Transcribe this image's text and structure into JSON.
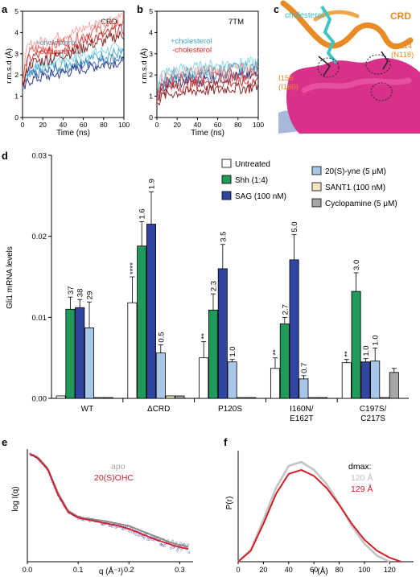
{
  "panels": {
    "a": {
      "letter": "a",
      "title": "CRD",
      "ylabel": "r.m.s.d (Å)",
      "xlabel": "Time (ns)",
      "legend": [
        "+cholesterol",
        "-cholesterol"
      ],
      "colors": {
        "plus": "#3aa7c8",
        "minus": "#d9302c"
      },
      "xticks": [
        "0",
        "20",
        "40",
        "60",
        "80",
        "100"
      ],
      "yticks": [
        "0",
        "1",
        "2",
        "3",
        "4",
        "5"
      ]
    },
    "b": {
      "letter": "b",
      "title": "7TM",
      "ylabel": "r.m.s.d (Å)",
      "xlabel": "Time (ns)",
      "legend": [
        "+cholesterol",
        "-cholesterol"
      ],
      "xticks": [
        "0",
        "20",
        "40",
        "60",
        "80",
        "100"
      ],
      "yticks": [
        "0",
        "1",
        "2",
        "3",
        "4",
        "5"
      ]
    },
    "c": {
      "letter": "c",
      "labels": {
        "cholesterol": "cholesterol",
        "crd": "CRD",
        "ld": "LD",
        "n114": "N114",
        "n118": "(N118)",
        "i156": "I156",
        "i160": "(I160)"
      }
    },
    "d": {
      "letter": "d",
      "ylabel": "Gli1 mRNA levels",
      "legend": [
        {
          "label": "Untreated",
          "color": "#ffffff"
        },
        {
          "label": "Shh (1:4)",
          "color": "#1f9a5a"
        },
        {
          "label": "SAG (100 nM)",
          "color": "#2f45a0"
        },
        {
          "label": "20(S)-yne (5 μM)",
          "color": "#a7c6e8"
        },
        {
          "label": "SANT1 (100 nM)",
          "color": "#efe6c3"
        },
        {
          "label": "Cyclopamine (5 μM)",
          "color": "#a6a6a6"
        }
      ]
    },
    "e": {
      "letter": "e",
      "ylabel": "log I(q)",
      "xlabel": "q (Å⁻¹)",
      "legend": [
        {
          "label": "apo",
          "color": "#a8a8a8"
        },
        {
          "label": "20(S)OHC",
          "color": "#d11f26"
        }
      ],
      "xticks": [
        "0.0",
        "0.1",
        "0.2",
        "0.3"
      ]
    },
    "f": {
      "letter": "f",
      "ylabel": "P(r)",
      "xlabel": "r (Å)",
      "legend_title": "dmax:",
      "legend": [
        {
          "label": "120 Å",
          "color": "#bdbdbd"
        },
        {
          "label": "129 Å",
          "color": "#d11f26"
        }
      ],
      "xticks": [
        "0",
        "20",
        "40",
        "60",
        "80",
        "100",
        "120"
      ]
    }
  },
  "chart_data": [
    {
      "type": "line",
      "panel": "a",
      "title": "CRD",
      "xlabel": "Time (ns)",
      "ylabel": "r.m.s.d (Å)",
      "xlim": [
        0,
        100
      ],
      "ylim": [
        0,
        5
      ],
      "series": [
        {
          "name": "+cholesterol",
          "x": [
            0,
            5,
            10,
            20,
            30,
            40,
            50,
            60,
            70,
            80,
            90,
            100
          ],
          "y": [
            1.3,
            2.0,
            2.1,
            2.2,
            2.3,
            2.4,
            2.5,
            2.6,
            2.7,
            2.8,
            2.9,
            2.9
          ]
        },
        {
          "name": "-cholesterol",
          "x": [
            0,
            5,
            10,
            20,
            30,
            40,
            50,
            60,
            70,
            80,
            90,
            100
          ],
          "y": [
            1.5,
            2.8,
            3.0,
            3.1,
            3.2,
            3.4,
            3.5,
            3.7,
            3.9,
            4.0,
            4.2,
            4.3
          ]
        }
      ]
    },
    {
      "type": "line",
      "panel": "b",
      "title": "7TM",
      "xlabel": "Time (ns)",
      "ylabel": "r.m.s.d (Å)",
      "xlim": [
        0,
        100
      ],
      "ylim": [
        0,
        5
      ],
      "series": [
        {
          "name": "+cholesterol",
          "x": [
            0,
            5,
            10,
            20,
            30,
            40,
            50,
            60,
            70,
            80,
            90,
            100
          ],
          "y": [
            1.0,
            1.7,
            1.8,
            1.9,
            2.0,
            2.0,
            2.1,
            2.1,
            2.2,
            2.2,
            2.2,
            2.3
          ]
        },
        {
          "name": "-cholesterol",
          "x": [
            0,
            5,
            10,
            20,
            30,
            40,
            50,
            60,
            70,
            80,
            90,
            100
          ],
          "y": [
            0.9,
            1.4,
            1.5,
            1.6,
            1.6,
            1.7,
            1.7,
            1.7,
            1.8,
            1.8,
            1.8,
            1.9
          ]
        }
      ]
    },
    {
      "type": "bar",
      "panel": "d",
      "ylabel": "Gli1 mRNA levels",
      "ylim": [
        0,
        0.03
      ],
      "yticks": [
        "0.00",
        "0.01",
        "0.02",
        "0.03"
      ],
      "categories": [
        "WT",
        "ΔCRD",
        "P120S",
        "I160N/\nE162T",
        "C197S/\nC217S"
      ],
      "series": [
        {
          "name": "Untreated",
          "values": [
            0.0003,
            0.0118,
            0.005,
            0.0037,
            0.0044
          ],
          "errors": [
            0.0001,
            0.0032,
            0.002,
            0.0013,
            0.0004
          ]
        },
        {
          "name": "Shh (1:4)",
          "values": [
            0.011,
            0.0188,
            0.0109,
            0.0092,
            0.0132
          ],
          "errors": [
            0.0015,
            0.003,
            0.002,
            0.0008,
            0.0023
          ]
        },
        {
          "name": "SAG (100 nM)",
          "values": [
            0.0112,
            0.0215,
            0.016,
            0.0171,
            0.0045
          ],
          "errors": [
            0.001,
            0.004,
            0.003,
            0.0031,
            0.0004
          ]
        },
        {
          "name": "20(S)-yne (5 μM)",
          "values": [
            0.0087,
            0.0056,
            0.0045,
            0.0024,
            0.0046
          ],
          "errors": [
            0.0032,
            0.001,
            0.0003,
            0.0004,
            0.0016
          ]
        },
        {
          "name": "SANT1 (100 nM)",
          "values": [
            0.0001,
            0.0003,
            0.0001,
            0.0001,
            0.0001
          ],
          "errors": [
            0.0001,
            0.0001,
            0.0001,
            0.0001,
            0.0001
          ]
        },
        {
          "name": "Cyclopamine (5 μM)",
          "values": [
            0.0001,
            0.0003,
            0.0001,
            0.0001,
            0.0032
          ],
          "errors": [
            0.0001,
            0.0001,
            0.0001,
            0.0001,
            0.0005
          ]
        }
      ],
      "annotations": [
        {
          "category": 0,
          "series": 1,
          "text": "37"
        },
        {
          "category": 0,
          "series": 2,
          "text": "38"
        },
        {
          "category": 0,
          "series": 3,
          "text": "29"
        },
        {
          "category": 1,
          "series": 0,
          "text": "****"
        },
        {
          "category": 1,
          "series": 1,
          "text": "1.6"
        },
        {
          "category": 1,
          "series": 2,
          "text": "1.9"
        },
        {
          "category": 1,
          "series": 3,
          "text": "0.5"
        },
        {
          "category": 2,
          "series": 0,
          "text": "**"
        },
        {
          "category": 2,
          "series": 1,
          "text": "2.3"
        },
        {
          "category": 2,
          "series": 2,
          "text": "3.5"
        },
        {
          "category": 2,
          "series": 3,
          "text": "1.0"
        },
        {
          "category": 3,
          "series": 0,
          "text": "**"
        },
        {
          "category": 3,
          "series": 1,
          "text": "2.7"
        },
        {
          "category": 3,
          "series": 2,
          "text": "5.0"
        },
        {
          "category": 3,
          "series": 3,
          "text": "0.7"
        },
        {
          "category": 4,
          "series": 0,
          "text": "**"
        },
        {
          "category": 4,
          "series": 1,
          "text": "3.0"
        },
        {
          "category": 4,
          "series": 2,
          "text": "1.0"
        },
        {
          "category": 4,
          "series": 3,
          "text": "1.0"
        }
      ]
    },
    {
      "type": "scatter",
      "panel": "e",
      "xlabel": "q (Å⁻¹)",
      "ylabel": "log I(q)",
      "xlim": [
        0,
        0.32
      ],
      "series": [
        {
          "name": "apo",
          "x": [
            0.005,
            0.02,
            0.04,
            0.06,
            0.08,
            0.1,
            0.12,
            0.15,
            0.18,
            0.2,
            0.22,
            0.25,
            0.28,
            0.3,
            0.32
          ],
          "y": [
            1.0,
            0.97,
            0.86,
            0.62,
            0.44,
            0.38,
            0.36,
            0.34,
            0.31,
            0.29,
            0.25,
            0.19,
            0.13,
            0.1,
            0.08
          ]
        },
        {
          "name": "20(S)OHC",
          "x": [
            0.005,
            0.02,
            0.04,
            0.06,
            0.08,
            0.1,
            0.12,
            0.15,
            0.18,
            0.2,
            0.22,
            0.25,
            0.28,
            0.3,
            0.32
          ],
          "y": [
            1.0,
            0.96,
            0.85,
            0.6,
            0.43,
            0.37,
            0.35,
            0.32,
            0.29,
            0.26,
            0.22,
            0.16,
            0.11,
            0.08,
            0.06
          ]
        }
      ]
    },
    {
      "type": "line",
      "panel": "f",
      "xlabel": "r (Å)",
      "ylabel": "P(r)",
      "xlim": [
        0,
        130
      ],
      "series": [
        {
          "name": "120 Å",
          "x": [
            0,
            10,
            20,
            30,
            40,
            50,
            60,
            70,
            80,
            90,
            100,
            110,
            120
          ],
          "y": [
            0,
            0.12,
            0.42,
            0.74,
            0.96,
            1.0,
            0.92,
            0.78,
            0.58,
            0.36,
            0.18,
            0.06,
            0
          ]
        },
        {
          "name": "129 Å",
          "x": [
            0,
            10,
            20,
            30,
            40,
            50,
            60,
            70,
            80,
            90,
            100,
            110,
            120,
            129
          ],
          "y": [
            0,
            0.11,
            0.38,
            0.68,
            0.88,
            0.92,
            0.86,
            0.74,
            0.57,
            0.38,
            0.22,
            0.11,
            0.04,
            0
          ]
        }
      ]
    }
  ]
}
